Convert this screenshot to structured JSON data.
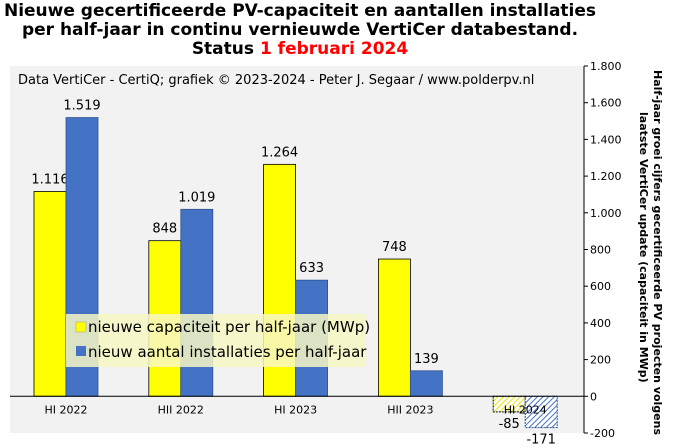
{
  "title": {
    "line1": "Nieuwe gecertificeerde PV-capaciteit en aantallen installaties",
    "line2": "per half-jaar in continu vernieuwde VertiCer databestand.",
    "line3_prefix": "Status",
    "line3_date": "1 februari 2024"
  },
  "credit": "Data VertiCer - CertiQ; grafiek © 2023-2024 - Peter J. Segaar / www.polderpv.nl",
  "colors": {
    "capacity": "#ffff00",
    "installations": "#4472c4",
    "preliminary_hatch": "#4472c4",
    "accent": "#ff0000"
  },
  "chart_data": {
    "type": "bar",
    "categories": [
      "HI 2022",
      "HII 2022",
      "HI 2023",
      "HII 2023",
      "HI 2024"
    ],
    "series": [
      {
        "name": "nieuwe capaciteit per half-jaar (MWp)",
        "values": [
          1116,
          848,
          1264,
          748,
          -85
        ],
        "labels": [
          "1.116",
          "848",
          "1.264",
          "748",
          "-85"
        ]
      },
      {
        "name": "nieuw aantal installaties per half-jaar",
        "values": [
          1519,
          1019,
          633,
          139,
          -171
        ],
        "labels": [
          "1.519",
          "1.019",
          "633",
          "139",
          "-171"
        ]
      }
    ],
    "ylim": [
      -200,
      1800
    ],
    "yticks": [
      -200,
      0,
      200,
      400,
      600,
      800,
      1000,
      1200,
      1400,
      1600,
      1800
    ],
    "ytick_labels": [
      "-200",
      "0",
      "200",
      "400",
      "600",
      "800",
      "1.000",
      "1.200",
      "1.400",
      "1.600",
      "1.800"
    ],
    "ylabel_line1": "Half-jaar groei cijfers gecertificeerde PV projecten volgens",
    "ylabel_line2": "laatste VertiCer update (capaciteit in MWp)",
    "legend_position": "center-left",
    "grid": false
  }
}
